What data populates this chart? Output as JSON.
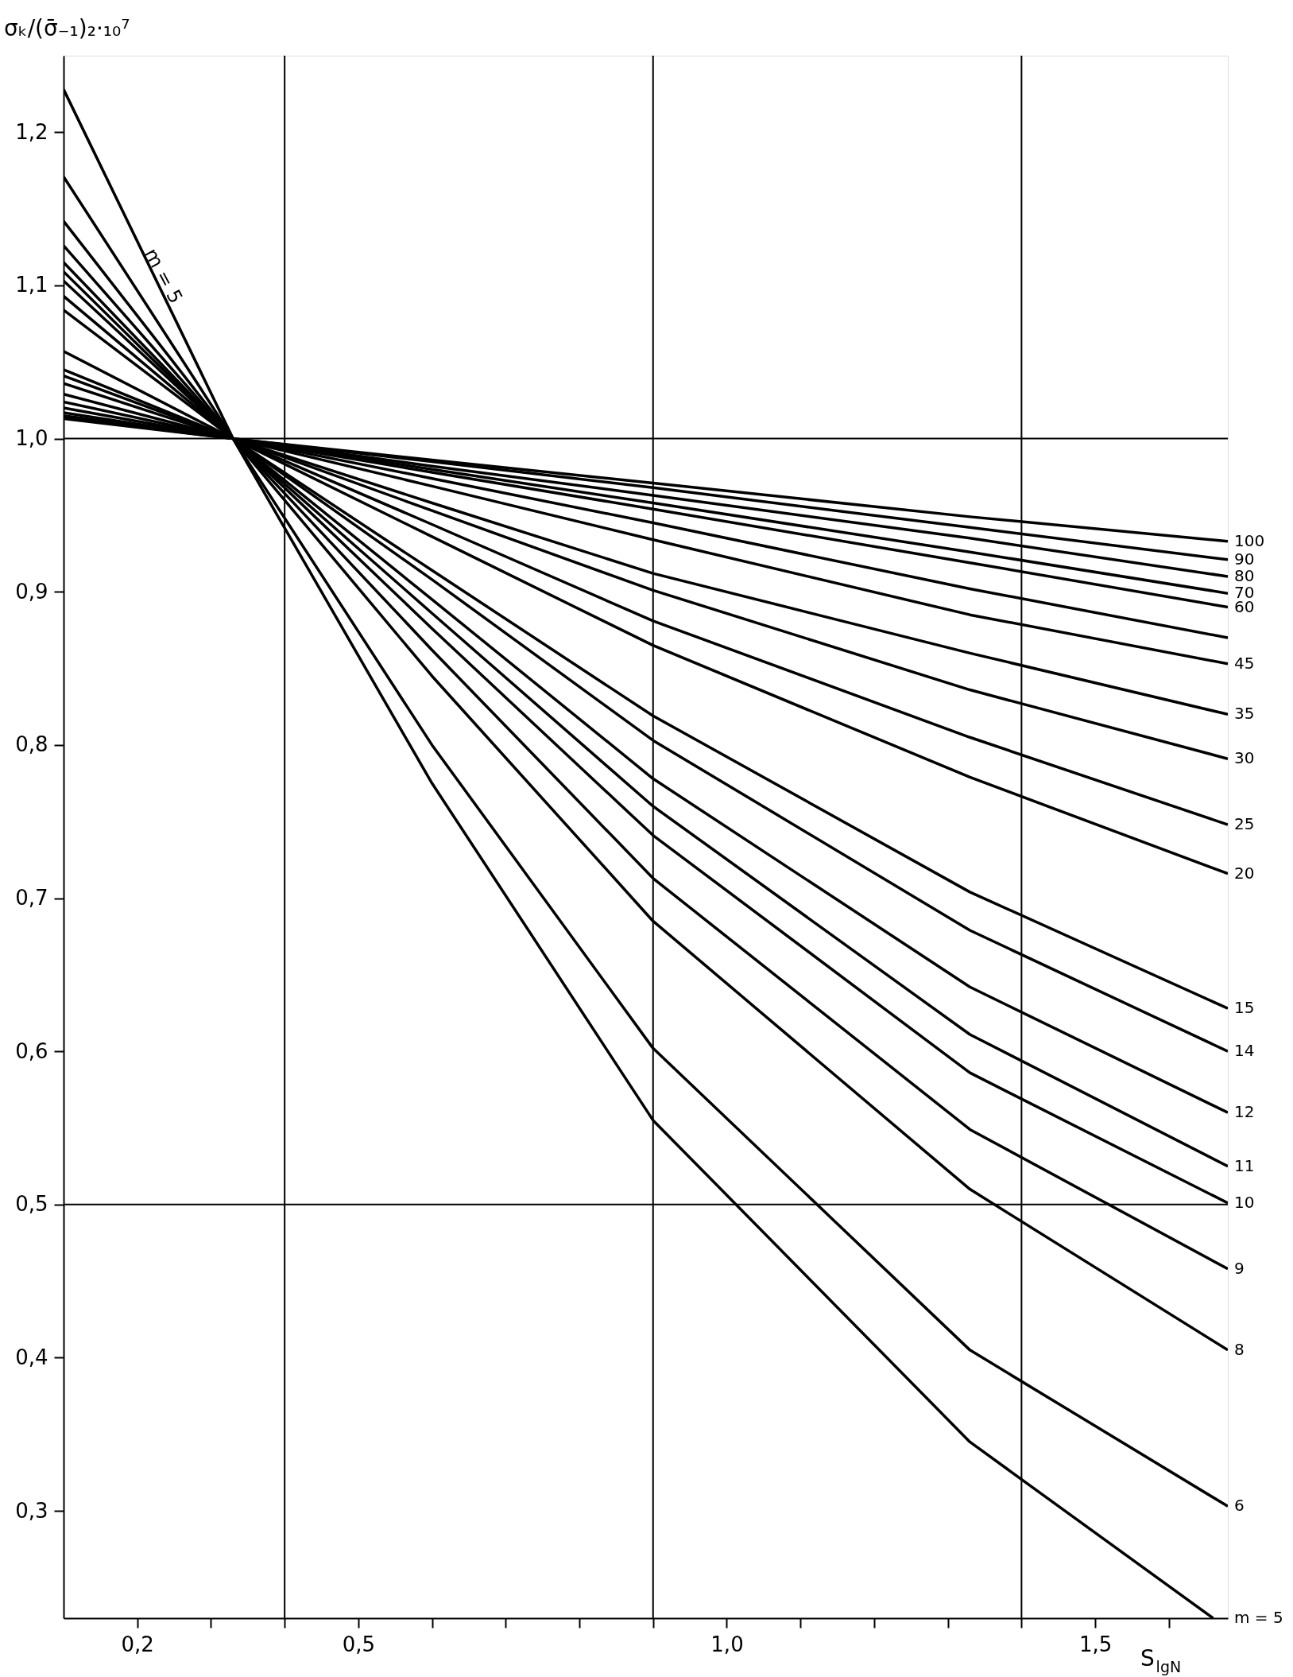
{
  "chart_data": {
    "type": "line",
    "ylabel": "σₖ/(σ̄₋₁)₂·₁₀⁷",
    "xlabel": "S$_{lgN}$",
    "x": [
      0.1,
      0.33,
      0.6,
      0.9,
      1.33,
      1.68
    ],
    "xlim": [
      0.1,
      1.68
    ],
    "ylim": [
      0.23,
      1.25
    ],
    "xticks": [
      {
        "value": 0.2,
        "label": "0,2"
      },
      {
        "value": 0.3,
        "label": null
      },
      {
        "value": 0.4,
        "label": null
      },
      {
        "value": 0.5,
        "label": "0,5"
      },
      {
        "value": 0.6,
        "label": null
      },
      {
        "value": 0.7,
        "label": null
      },
      {
        "value": 0.8,
        "label": null
      },
      {
        "value": 0.9,
        "label": null
      },
      {
        "value": 1.0,
        "label": "1,0"
      },
      {
        "value": 1.1,
        "label": null
      },
      {
        "value": 1.2,
        "label": null
      },
      {
        "value": 1.3,
        "label": null
      },
      {
        "value": 1.4,
        "label": null
      },
      {
        "value": 1.5,
        "label": "1,5"
      },
      {
        "value": 1.6,
        "label": null
      }
    ],
    "yticks": [
      {
        "value": 0.3,
        "label": "0,3"
      },
      {
        "value": 0.4,
        "label": "0,4"
      },
      {
        "value": 0.5,
        "label": "0,5"
      },
      {
        "value": 0.6,
        "label": "0,6"
      },
      {
        "value": 0.7,
        "label": "0,7"
      },
      {
        "value": 0.8,
        "label": "0,8"
      },
      {
        "value": 0.9,
        "label": "0,9"
      },
      {
        "value": 1.0,
        "label": "1,0"
      },
      {
        "value": 1.1,
        "label": "1,1"
      },
      {
        "value": 1.2,
        "label": "1,2"
      }
    ],
    "grid": false,
    "line_style": "solid",
    "ref_lines": [
      {
        "axis": "x",
        "value": 0.4,
        "color": "#000000"
      },
      {
        "axis": "x",
        "value": 0.9,
        "color": "#000000"
      },
      {
        "axis": "x",
        "value": 1.4,
        "color": "#000000"
      },
      {
        "axis": "y",
        "value": 1.0,
        "color": "#000000"
      },
      {
        "axis": "y",
        "value": 0.5,
        "color": "#000000"
      }
    ],
    "annotations": [
      {
        "text": "m = 5",
        "x": 0.21,
        "y": 1.115
      }
    ],
    "series": [
      {
        "name": "m = 5",
        "color": "#000000",
        "x": [
          0.1,
          0.33,
          0.6,
          0.9,
          1.33,
          1.66
        ],
        "values": [
          1.228,
          1.0,
          0.775,
          0.555,
          0.345,
          0.23
        ]
      },
      {
        "name": "6",
        "color": "#000000",
        "values": [
          1.171,
          1.0,
          0.8,
          0.602,
          0.405,
          0.303
        ]
      },
      {
        "name": "8",
        "color": "#000000",
        "values": [
          1.142,
          1.0,
          0.845,
          0.685,
          0.51,
          0.405
        ]
      },
      {
        "name": "9",
        "color": "#000000",
        "values": [
          1.126,
          1.0,
          0.862,
          0.713,
          0.549,
          0.458
        ]
      },
      {
        "name": "10",
        "color": "#000000",
        "values": [
          1.115,
          1.0,
          0.876,
          0.741,
          0.586,
          0.501
        ]
      },
      {
        "name": "11",
        "color": "#000000",
        "values": [
          1.109,
          1.0,
          0.886,
          0.76,
          0.611,
          0.525
        ]
      },
      {
        "name": "12",
        "color": "#000000",
        "values": [
          1.103,
          1.0,
          0.895,
          0.778,
          0.642,
          0.56
        ]
      },
      {
        "name": "14",
        "color": "#000000",
        "values": [
          1.093,
          1.0,
          0.908,
          0.803,
          0.679,
          0.6
        ]
      },
      {
        "name": "15",
        "color": "#000000",
        "values": [
          1.084,
          1.0,
          0.914,
          0.819,
          0.704,
          0.628
        ]
      },
      {
        "name": "20",
        "color": "#000000",
        "values": [
          1.057,
          1.0,
          0.936,
          0.865,
          0.779,
          0.716
        ]
      },
      {
        "name": "25",
        "color": "#000000",
        "values": [
          1.045,
          1.0,
          0.944,
          0.881,
          0.805,
          0.748
        ]
      },
      {
        "name": "30",
        "color": "#000000",
        "values": [
          1.041,
          1.0,
          0.953,
          0.901,
          0.836,
          0.791
        ]
      },
      {
        "name": "35",
        "color": "#000000",
        "values": [
          1.036,
          1.0,
          0.958,
          0.912,
          0.86,
          0.82
        ]
      },
      {
        "name": "45",
        "color": "#000000",
        "values": [
          1.029,
          1.0,
          0.969,
          0.934,
          0.885,
          0.853
        ]
      },
      {
        "color": "#000000",
        "values": [
          1.024,
          1.0,
          0.974,
          0.945,
          0.902,
          0.87
        ]
      },
      {
        "name": "60",
        "color": "#000000",
        "values": [
          1.02,
          1.0,
          0.978,
          0.954,
          0.919,
          0.89
        ]
      },
      {
        "name": "70",
        "color": "#000000",
        "values": [
          1.017,
          1.0,
          0.98,
          0.958,
          0.926,
          0.899
        ]
      },
      {
        "name": "80",
        "color": "#000000",
        "values": [
          1.015,
          1.0,
          0.982,
          0.963,
          0.935,
          0.91
        ]
      },
      {
        "name": "90",
        "color": "#000000",
        "values": [
          1.014,
          1.0,
          0.985,
          0.968,
          0.942,
          0.921
        ]
      },
      {
        "name": "100",
        "color": "#000000",
        "values": [
          1.013,
          1.0,
          0.986,
          0.971,
          0.949,
          0.933
        ]
      }
    ]
  }
}
